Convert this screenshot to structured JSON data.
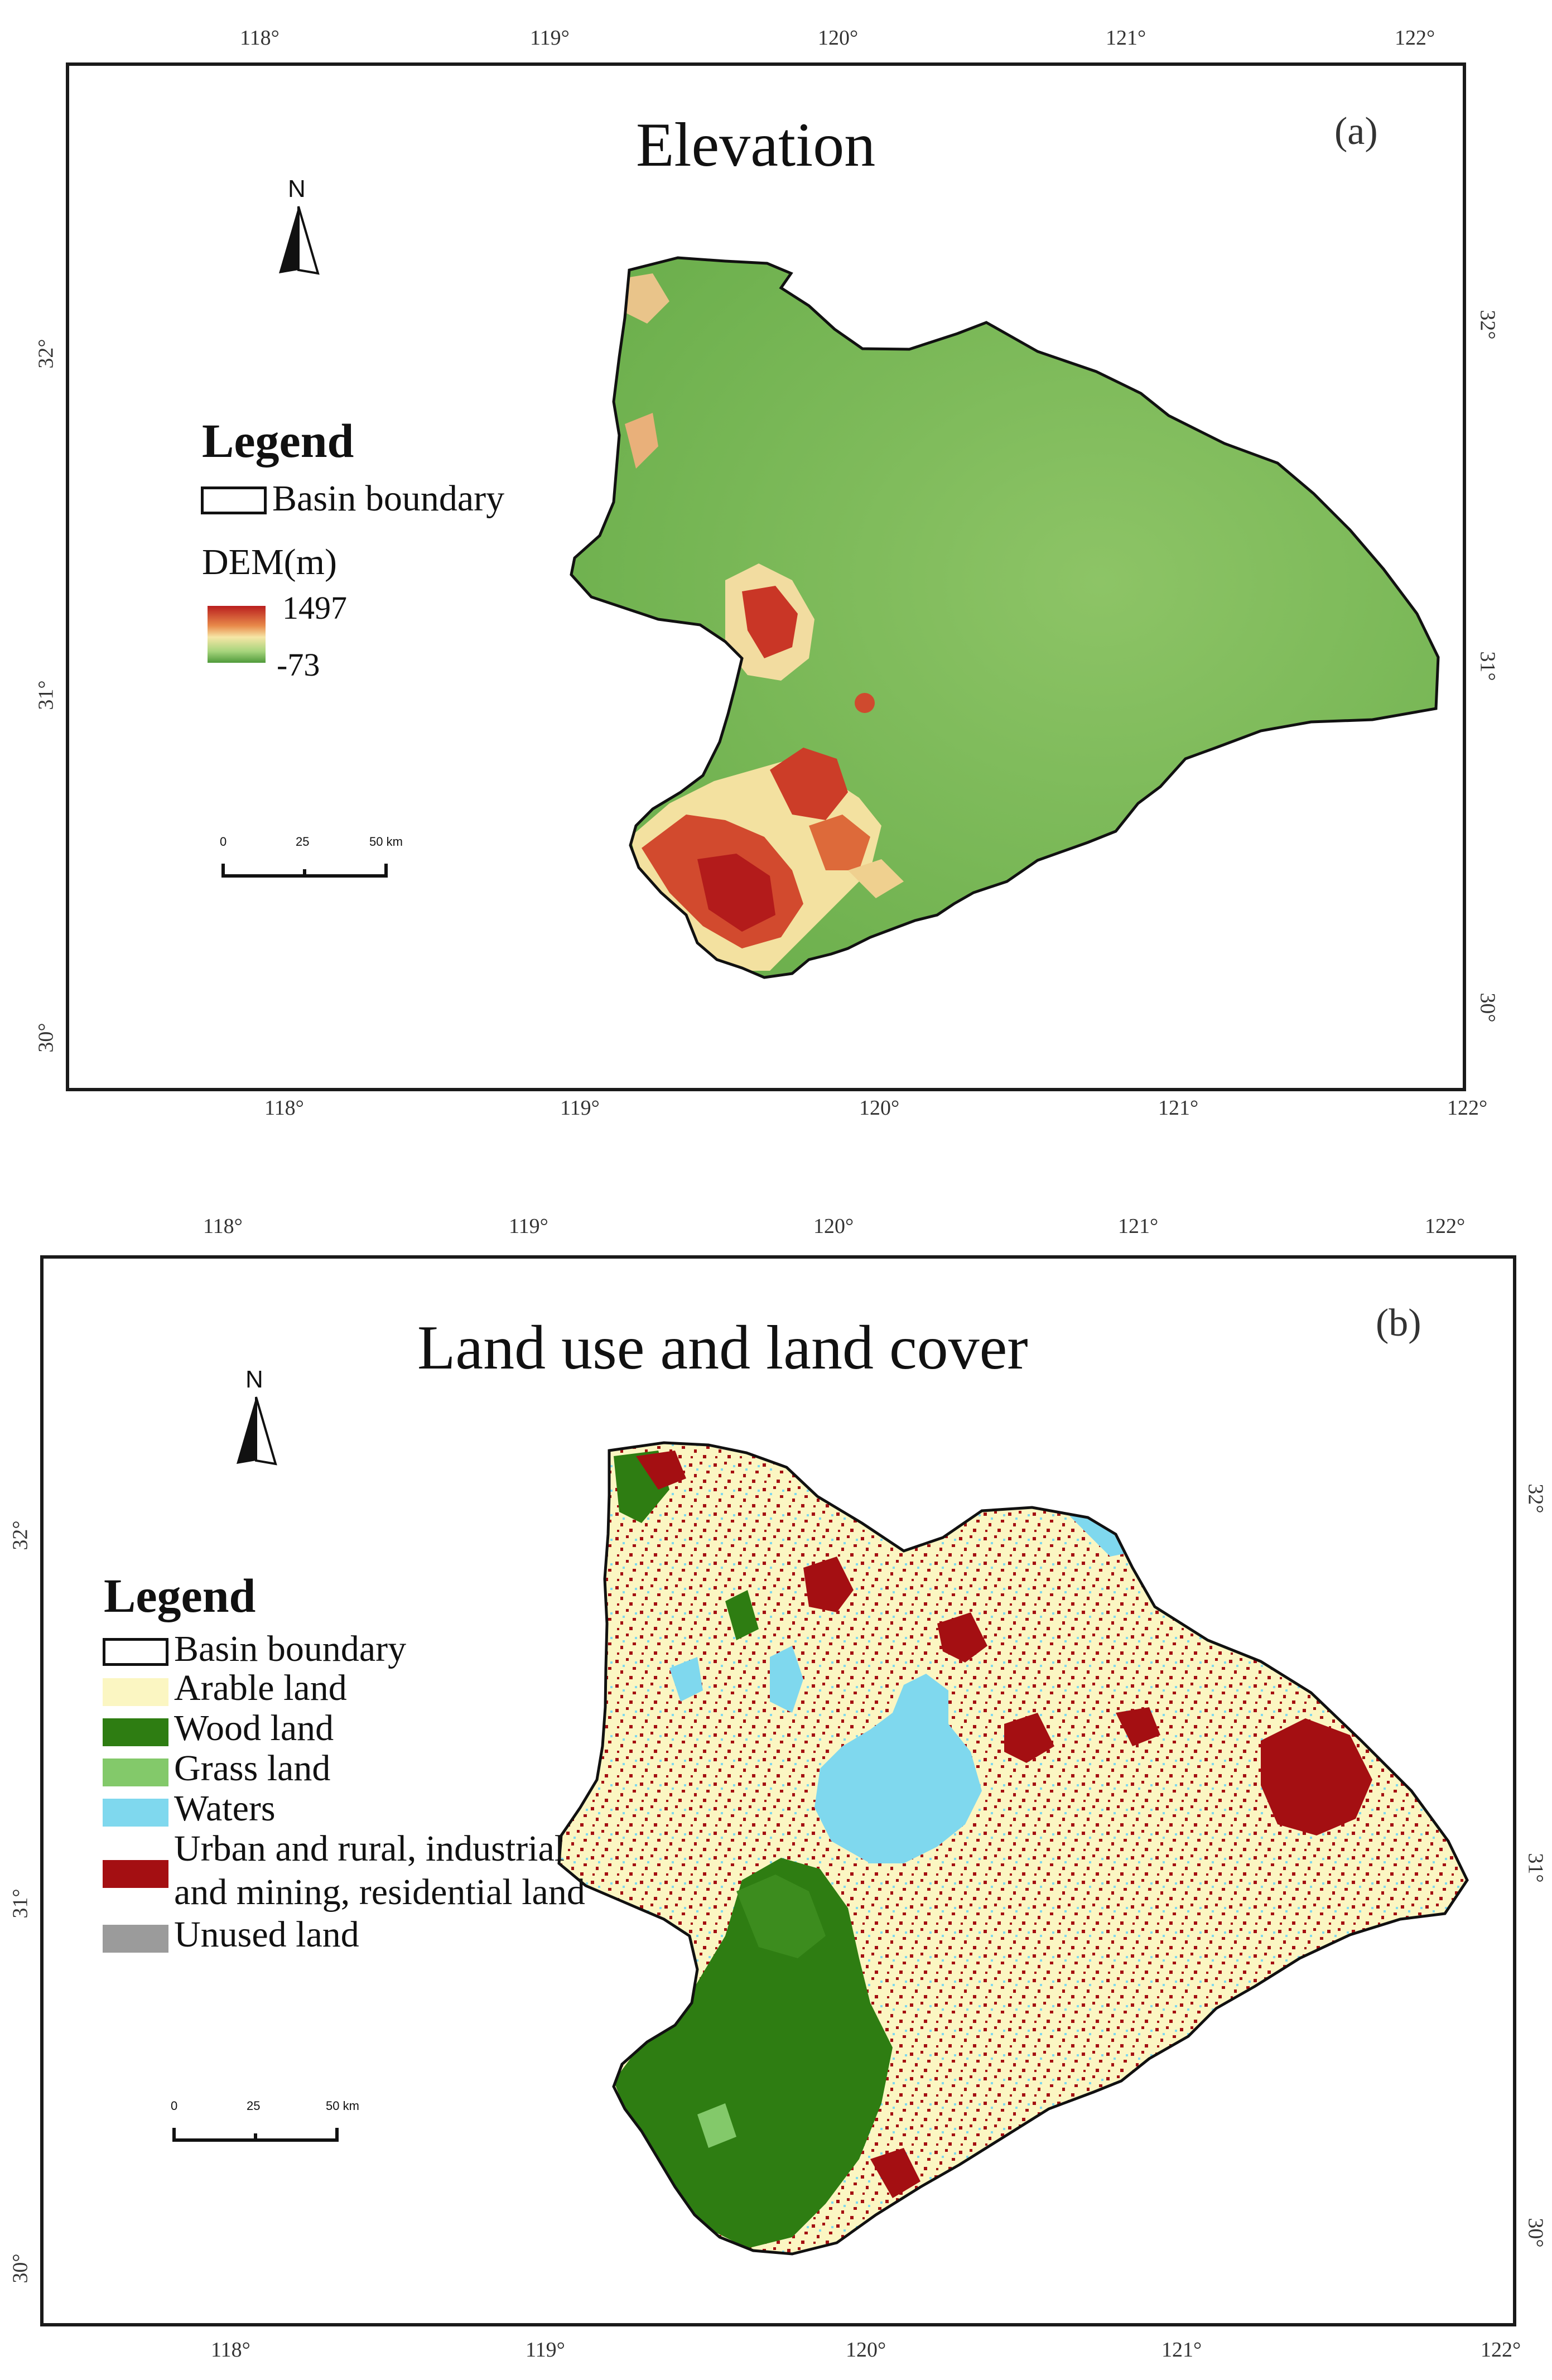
{
  "panels": {
    "a": {
      "title": "Elevation",
      "label": "(a)",
      "north": "N",
      "legend": {
        "heading": "Legend",
        "boundary_label": "Basin boundary",
        "dem_title": "DEM(m)",
        "dem_max": "1497",
        "dem_min": "-73",
        "ramp_colors": [
          "#b91e1e",
          "#e88a4a",
          "#f6e6a6",
          "#a6d47c",
          "#4f9a3a"
        ]
      },
      "scale": {
        "labels": [
          "0",
          "25",
          "50 km"
        ]
      },
      "lon_ticks": [
        "118°",
        "119°",
        "120°",
        "121°",
        "122°"
      ],
      "lat_ticks": [
        "32°",
        "31°",
        "30°"
      ]
    },
    "b": {
      "title": "Land use and land cover",
      "label": "(b)",
      "north": "N",
      "legend": {
        "heading": "Legend",
        "boundary_label": "Basin boundary",
        "items": [
          {
            "label": "Arable land",
            "color": "#fbf6c2"
          },
          {
            "label": "Wood land",
            "color": "#2e7d12"
          },
          {
            "label": "Grass land",
            "color": "#83c96a"
          },
          {
            "label": "Waters",
            "color": "#7fd8ee"
          },
          {
            "label": "Urban and rural, industrial",
            "label2": "and mining, residential land",
            "color": "#a40f12"
          },
          {
            "label": "Unused land",
            "color": "#9b9b9b"
          }
        ]
      },
      "scale": {
        "labels": [
          "0",
          "25",
          "50 km"
        ]
      },
      "lon_ticks": [
        "118°",
        "119°",
        "120°",
        "121°",
        "122°"
      ],
      "lat_ticks": [
        "32°",
        "31°",
        "30°"
      ]
    }
  }
}
